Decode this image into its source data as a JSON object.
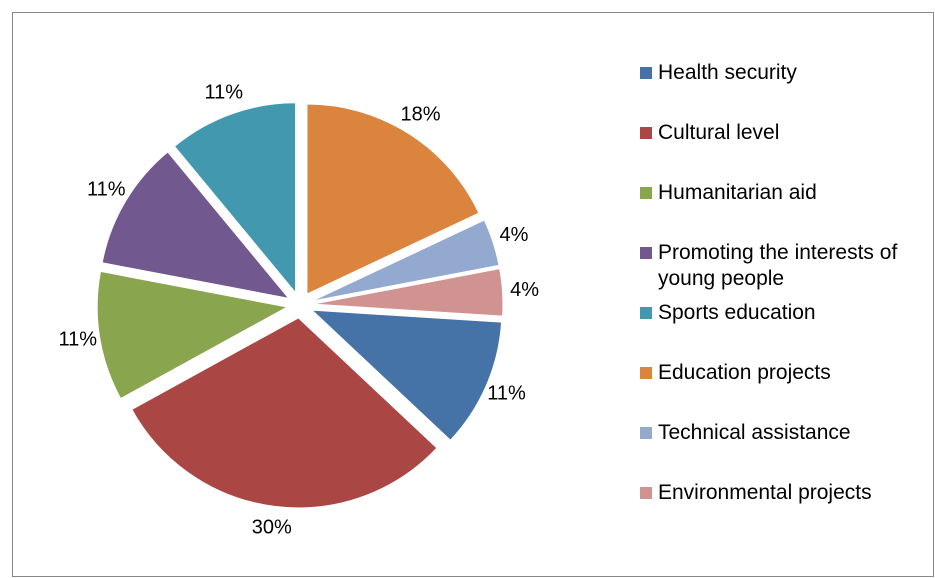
{
  "chart_data": {
    "type": "pie",
    "categories": [
      "Health security",
      "Cultural level",
      "Humanitarian aid",
      "Promoting the interests of young people",
      "Sports education",
      "Education projects",
      "Technical assistance",
      "Environmental projects"
    ],
    "values": [
      11,
      30,
      11,
      11,
      11,
      18,
      4,
      4
    ],
    "value_labels": [
      "11%",
      "30%",
      "11%",
      "11%",
      "11%",
      "18%",
      "4%",
      "4%"
    ],
    "colors": [
      "#4572a7",
      "#aa4643",
      "#89a54e",
      "#71588f",
      "#4198af",
      "#db843d",
      "#93a9cf",
      "#d19392"
    ],
    "legend": "right"
  }
}
